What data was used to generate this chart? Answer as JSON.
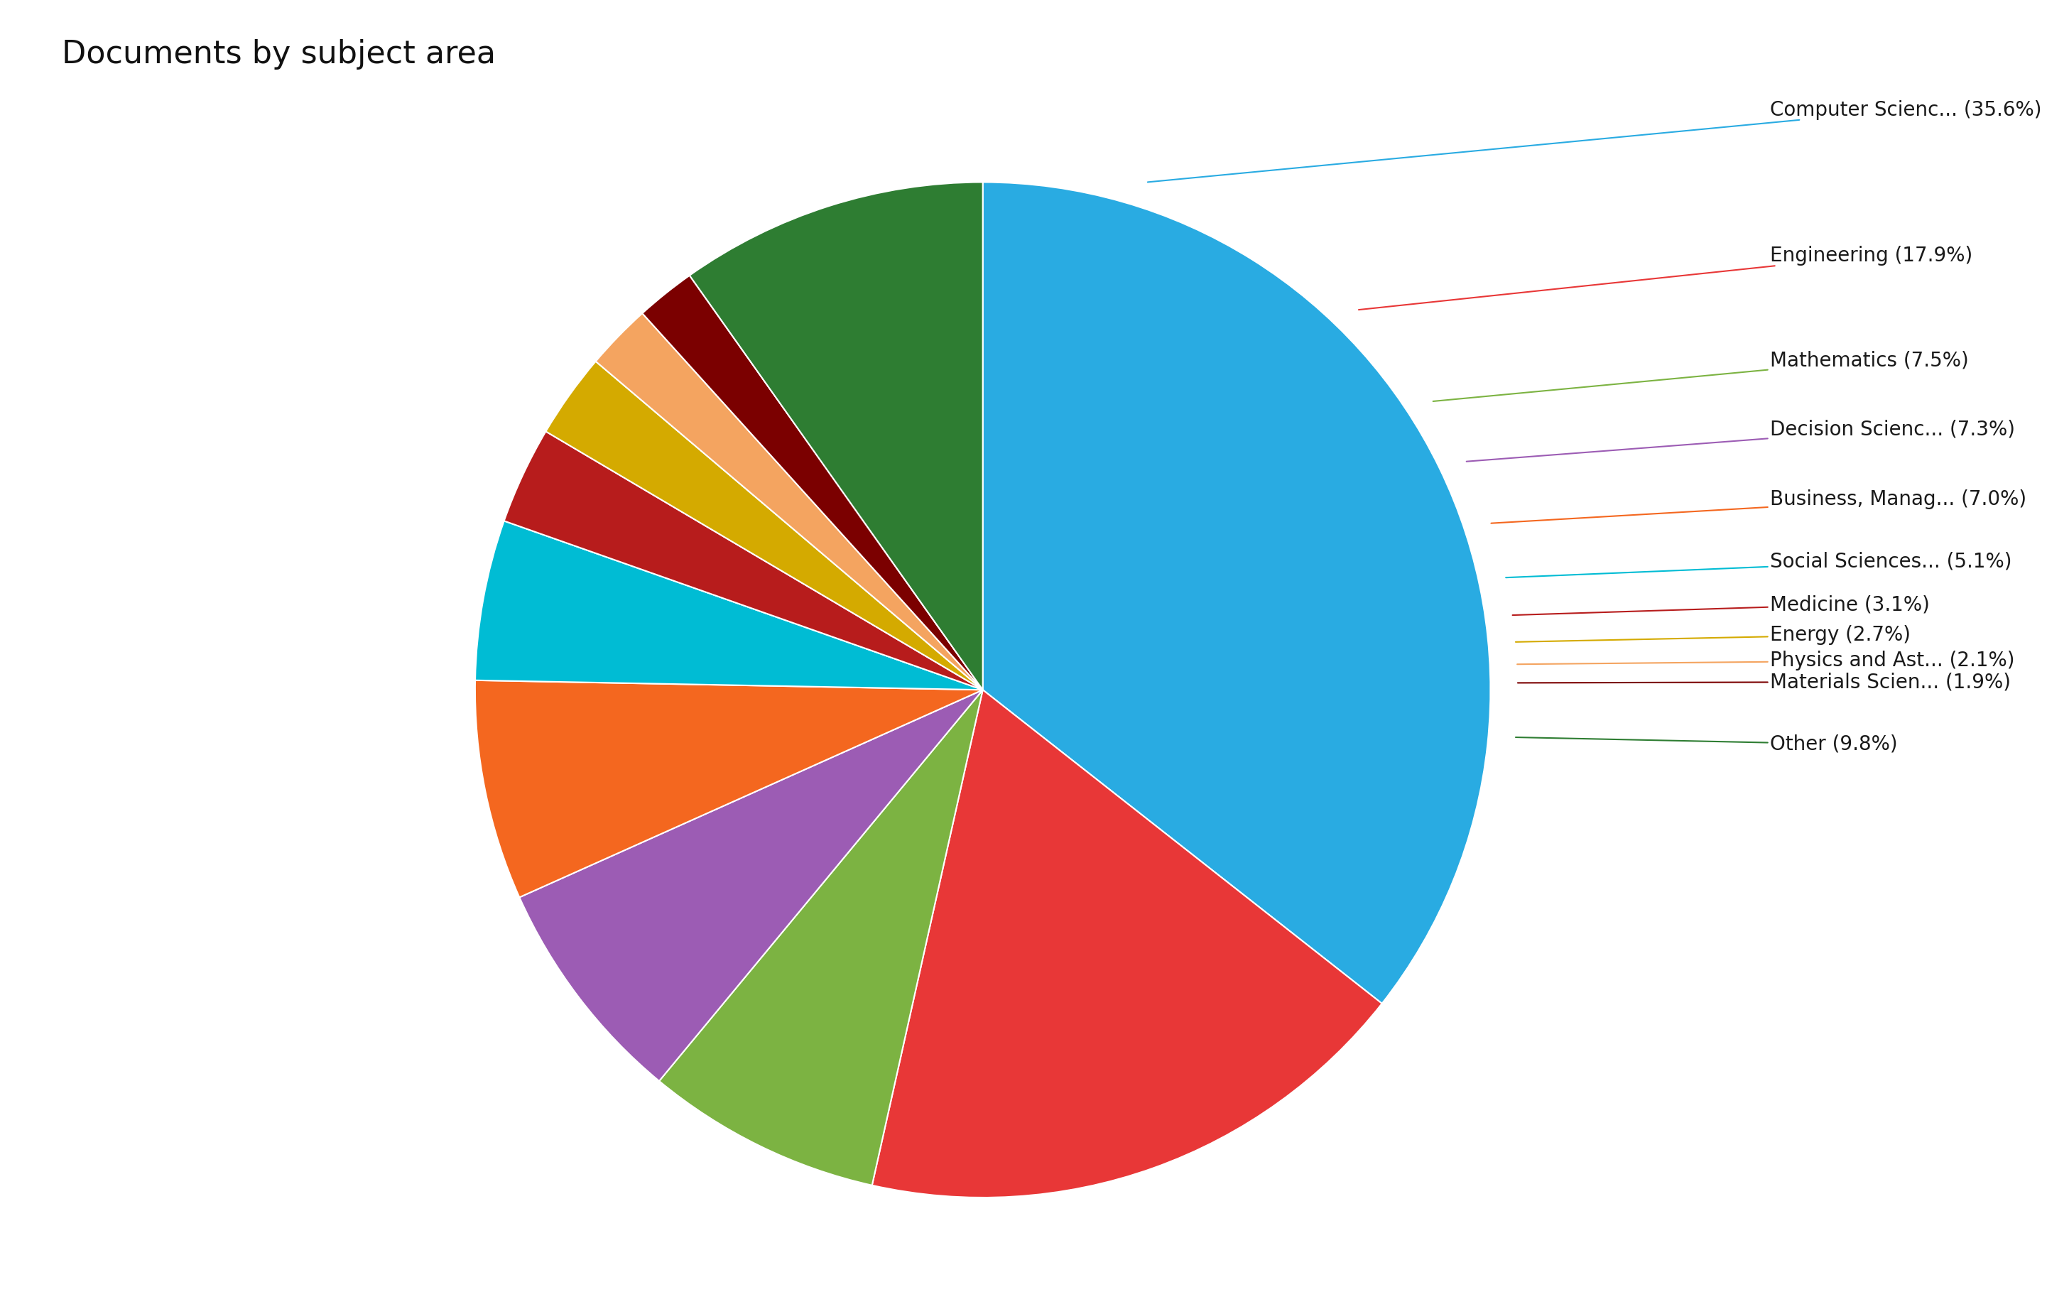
{
  "title": "Documents by subject area",
  "title_fontsize": 32,
  "slices": [
    {
      "label": "Computer Scienc... (35.6%)",
      "value": 35.6,
      "color": "#29ABE2"
    },
    {
      "label": "Engineering (17.9%)",
      "value": 17.9,
      "color": "#E83737"
    },
    {
      "label": "Mathematics (7.5%)",
      "value": 7.5,
      "color": "#7CB342"
    },
    {
      "label": "Decision Scienc... (7.3%)",
      "value": 7.3,
      "color": "#9C5CB4"
    },
    {
      "label": "Business, Manag... (7.0%)",
      "value": 7.0,
      "color": "#F4671F"
    },
    {
      "label": "Social Sciences... (5.1%)",
      "value": 5.1,
      "color": "#00BCD4"
    },
    {
      "label": "Medicine (3.1%)",
      "value": 3.1,
      "color": "#B71C1C"
    },
    {
      "label": "Energy (2.7%)",
      "value": 2.7,
      "color": "#D4AA00"
    },
    {
      "label": "Physics and Ast... (2.1%)",
      "value": 2.1,
      "color": "#F4A460"
    },
    {
      "label": "Materials Scien... (1.9%)",
      "value": 1.9,
      "color": "#7B0000"
    },
    {
      "label": "Other (9.8%)",
      "value": 9.8,
      "color": "#2E7D32"
    }
  ],
  "label_fontsize": 20,
  "background_color": "#ffffff"
}
